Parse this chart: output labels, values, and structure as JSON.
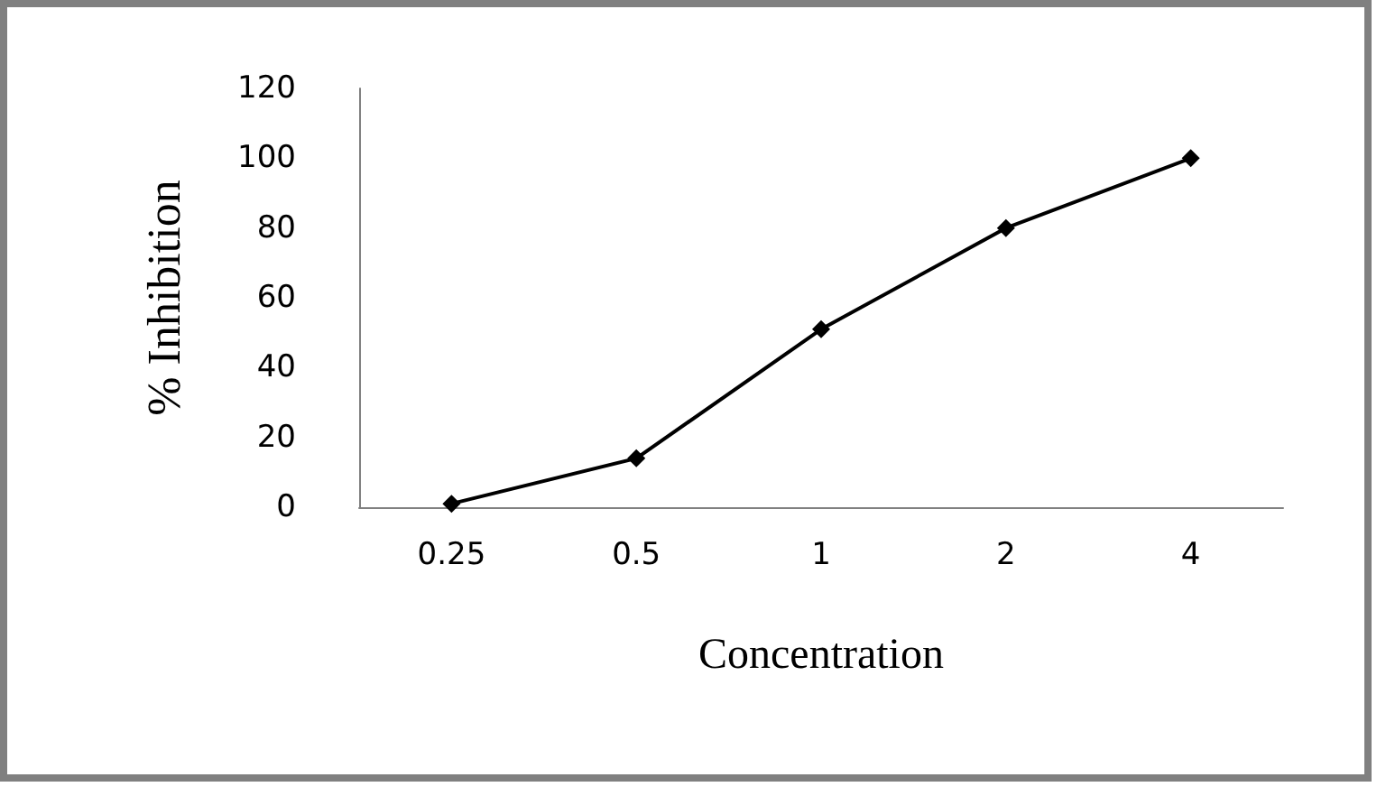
{
  "chart_data": {
    "type": "line",
    "xlabel": "Concentration",
    "ylabel": "% Inhibition",
    "categories": [
      "0.25",
      "0.5",
      "1",
      "2",
      "4"
    ],
    "series": [
      {
        "color": "#000000",
        "values": [
          1,
          14,
          51,
          80,
          100
        ]
      }
    ],
    "ylim": [
      0,
      120
    ],
    "yticks": [
      0,
      20,
      40,
      60,
      80,
      100,
      120
    ],
    "grid": false,
    "marker": "diamond",
    "line_style": "solid"
  }
}
